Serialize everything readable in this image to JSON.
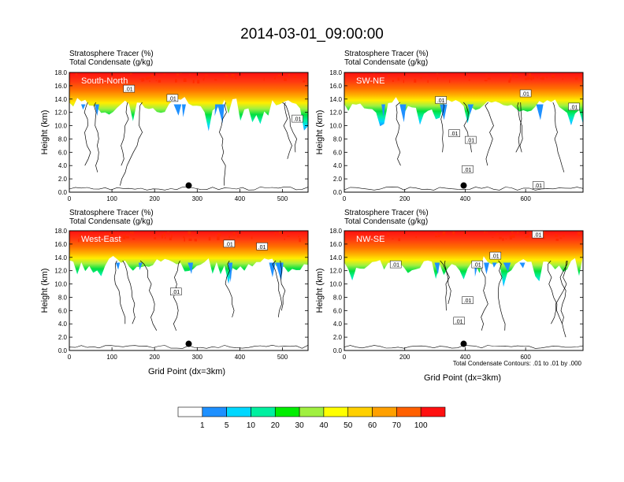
{
  "figure": {
    "title": "2014-03-01_09:00:00",
    "subtitle_line1": "Stratosphere Tracer   (%)",
    "subtitle_line2": "Total Condensate   (g/kg)",
    "ylabel": "Height (km)",
    "xlabel": "Grid Point (dx=3km)",
    "contour_note": "Total Condensate Contours: .01 to .01 by .000",
    "contour_label": ".01"
  },
  "colors": {
    "background": "#ffffff",
    "contour_line": "#000000"
  },
  "chart_data": [
    {
      "type": "heatmap",
      "name": "South-North",
      "title": "South-North",
      "xlim": [
        0,
        560
      ],
      "xticks": [
        0,
        100,
        200,
        300,
        400,
        500
      ],
      "ylim": [
        0,
        18
      ],
      "yticks": [
        0.0,
        2.0,
        4.0,
        6.0,
        8.0,
        10.0,
        12.0,
        14.0,
        16.0,
        18.0
      ],
      "ytick_labels": [
        "0.0",
        "2.0",
        "4.0",
        "6.0",
        "8.0",
        "10.0",
        "12.0",
        "14.0",
        "16.0",
        "18.0"
      ],
      "marker_x": 280,
      "marker_height_km": 1.0,
      "contour_labels": [
        {
          "x": 140,
          "y": 15.5
        },
        {
          "x": 242,
          "y": 14.1
        },
        {
          "x": 535,
          "y": 11.0
        }
      ]
    },
    {
      "type": "heatmap",
      "name": "SW-NE",
      "title": "SW-NE",
      "xlim": [
        0,
        790
      ],
      "xticks": [
        0,
        200,
        400,
        600
      ],
      "ylim": [
        0,
        18
      ],
      "yticks": [
        0.0,
        2.0,
        4.0,
        6.0,
        8.0,
        10.0,
        12.0,
        14.0,
        16.0,
        18.0
      ],
      "ytick_labels": [
        "0.0",
        "2.0",
        "4.0",
        "6.0",
        "8.0",
        "10.0",
        "12.0",
        "14.0",
        "16.0",
        "18.0"
      ],
      "marker_x": 395,
      "marker_height_km": 1.0,
      "contour_labels": [
        {
          "x": 320,
          "y": 13.8
        },
        {
          "x": 364,
          "y": 8.8
        },
        {
          "x": 418,
          "y": 7.8
        },
        {
          "x": 408,
          "y": 3.4
        },
        {
          "x": 642,
          "y": 1.0
        },
        {
          "x": 600,
          "y": 14.8
        },
        {
          "x": 760,
          "y": 12.8
        }
      ]
    },
    {
      "type": "heatmap",
      "name": "West-East",
      "title": "West-East",
      "xlim": [
        0,
        560
      ],
      "xticks": [
        0,
        100,
        200,
        300,
        400,
        500
      ],
      "ylim": [
        0,
        18
      ],
      "yticks": [
        0.0,
        2.0,
        4.0,
        6.0,
        8.0,
        10.0,
        12.0,
        14.0,
        16.0,
        18.0
      ],
      "ytick_labels": [
        "0.0",
        "2.0",
        "4.0",
        "6.0",
        "8.0",
        "10.0",
        "12.0",
        "14.0",
        "16.0",
        "18.0"
      ],
      "marker_x": 280,
      "marker_height_km": 1.0,
      "contour_labels": [
        {
          "x": 375,
          "y": 16.0
        },
        {
          "x": 452,
          "y": 15.6
        },
        {
          "x": 250,
          "y": 8.8
        }
      ]
    },
    {
      "type": "heatmap",
      "name": "NW-SE",
      "title": "NW-SE",
      "xlim": [
        0,
        790
      ],
      "xticks": [
        0,
        200,
        400,
        600
      ],
      "ylim": [
        0,
        18
      ],
      "yticks": [
        0.0,
        2.0,
        4.0,
        6.0,
        8.0,
        10.0,
        12.0,
        14.0,
        16.0,
        18.0
      ],
      "ytick_labels": [
        "0.0",
        "2.0",
        "4.0",
        "6.0",
        "8.0",
        "10.0",
        "12.0",
        "14.0",
        "16.0",
        "18.0"
      ],
      "marker_x": 395,
      "marker_height_km": 1.0,
      "contour_labels": [
        {
          "x": 170,
          "y": 12.9
        },
        {
          "x": 500,
          "y": 14.2
        },
        {
          "x": 440,
          "y": 12.9
        },
        {
          "x": 408,
          "y": 7.5
        },
        {
          "x": 380,
          "y": 4.4
        },
        {
          "x": 640,
          "y": 17.4
        }
      ]
    }
  ],
  "colorbar": {
    "type": "label_bar",
    "colors": [
      "#ffffff",
      "#1e90ff",
      "#00d8ff",
      "#00f0a0",
      "#00ee00",
      "#a0f040",
      "#ffff00",
      "#ffd000",
      "#ffa000",
      "#ff6000",
      "#ff1010"
    ],
    "labels": [
      "1",
      "5",
      "10",
      "20",
      "30",
      "40",
      "50",
      "60",
      "70",
      "100"
    ]
  }
}
